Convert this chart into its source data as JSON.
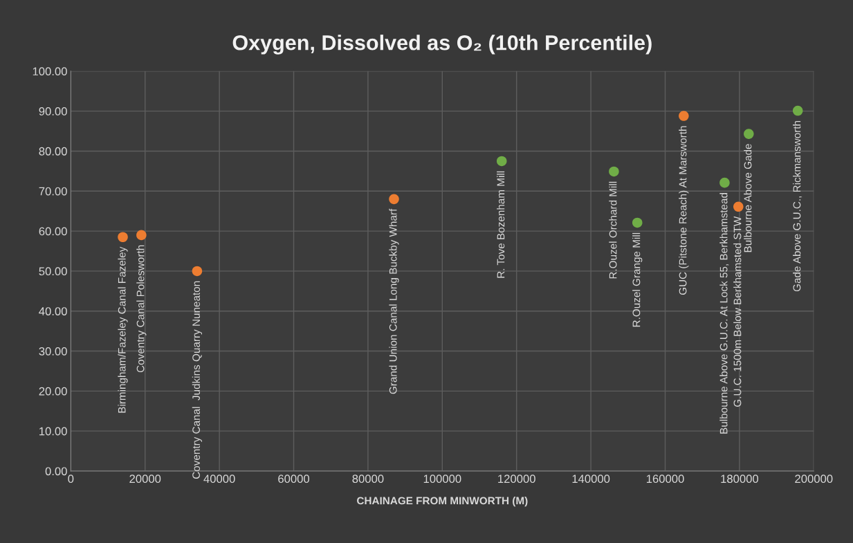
{
  "chart_data": {
    "type": "scatter",
    "title": "Oxygen, Dissolved as O₂ (10th Percentile)",
    "xlabel": "CHAINAGE FROM MINWORTH (M)",
    "series": [
      {
        "color": "#ed7d31",
        "x": [
          14000,
          19000,
          34000,
          87000,
          165000,
          179700
        ],
        "values": [
          58.5,
          59.0,
          50.0,
          68.0,
          88.8,
          66.1
        ]
      },
      {
        "color": "#70ad47",
        "x": [
          116000,
          146200,
          152500,
          176000,
          182500,
          195700
        ],
        "values": [
          77.5,
          74.9,
          62.1,
          72.1,
          84.3,
          90.1
        ]
      }
    ],
    "annotations": [
      {
        "text": "Birmingham/Fazeley Canal Fazeley",
        "x": 14000,
        "y": 58.5
      },
      {
        "text": "Coventry Canal Polesworth",
        "x": 19000,
        "y": 59.0
      },
      {
        "text": "Coventry Canal  Judkins Quarry Nuneaton",
        "x": 34000,
        "y": 50.0
      },
      {
        "text": "Grand Union Canal Long Buckby Wharf",
        "x": 87000,
        "y": 68.0
      },
      {
        "text": "R. Tove Bozenham Mill",
        "x": 116000,
        "y": 77.5
      },
      {
        "text": "R.Ouzel Orchard Mill",
        "x": 146200,
        "y": 74.9
      },
      {
        "text": "R.Ouzel Grange Mill",
        "x": 152500,
        "y": 62.1
      },
      {
        "text": "GUC (Pitstone Reach) At Marsworth",
        "x": 165000,
        "y": 88.8
      },
      {
        "text": "Bulbourne Above G.U.C. At Lock 55, Berkhamstead",
        "x": 176000,
        "y": 72.1
      },
      {
        "text": "G.U.C. 1500m Below Berkhamsted STW",
        "x": 179700,
        "y": 66.1
      },
      {
        "text": "Bulbourne Above Gade",
        "x": 182500,
        "y": 84.3
      },
      {
        "text": "Gade Above G.U.C., Rickmansworth",
        "x": 195700,
        "y": 90.1
      }
    ],
    "xlim": [
      0,
      200000
    ],
    "xticks": [
      0,
      20000,
      40000,
      60000,
      80000,
      100000,
      120000,
      140000,
      160000,
      180000,
      200000
    ],
    "ylim": [
      0,
      100
    ],
    "yticks": [
      {
        "value": 0,
        "label": "0.00"
      },
      {
        "value": 10,
        "label": "10.00"
      },
      {
        "value": 20,
        "label": "20.00"
      },
      {
        "value": 30,
        "label": "30.00"
      },
      {
        "value": 40,
        "label": "40.00"
      },
      {
        "value": 50,
        "label": "50.00"
      },
      {
        "value": 60,
        "label": "60.00"
      },
      {
        "value": 70,
        "label": "70.00"
      },
      {
        "value": 80,
        "label": "80.00"
      },
      {
        "value": 90,
        "label": "90.00"
      },
      {
        "value": 100,
        "label": "100.00"
      }
    ],
    "grid": true,
    "marker": "circle"
  }
}
